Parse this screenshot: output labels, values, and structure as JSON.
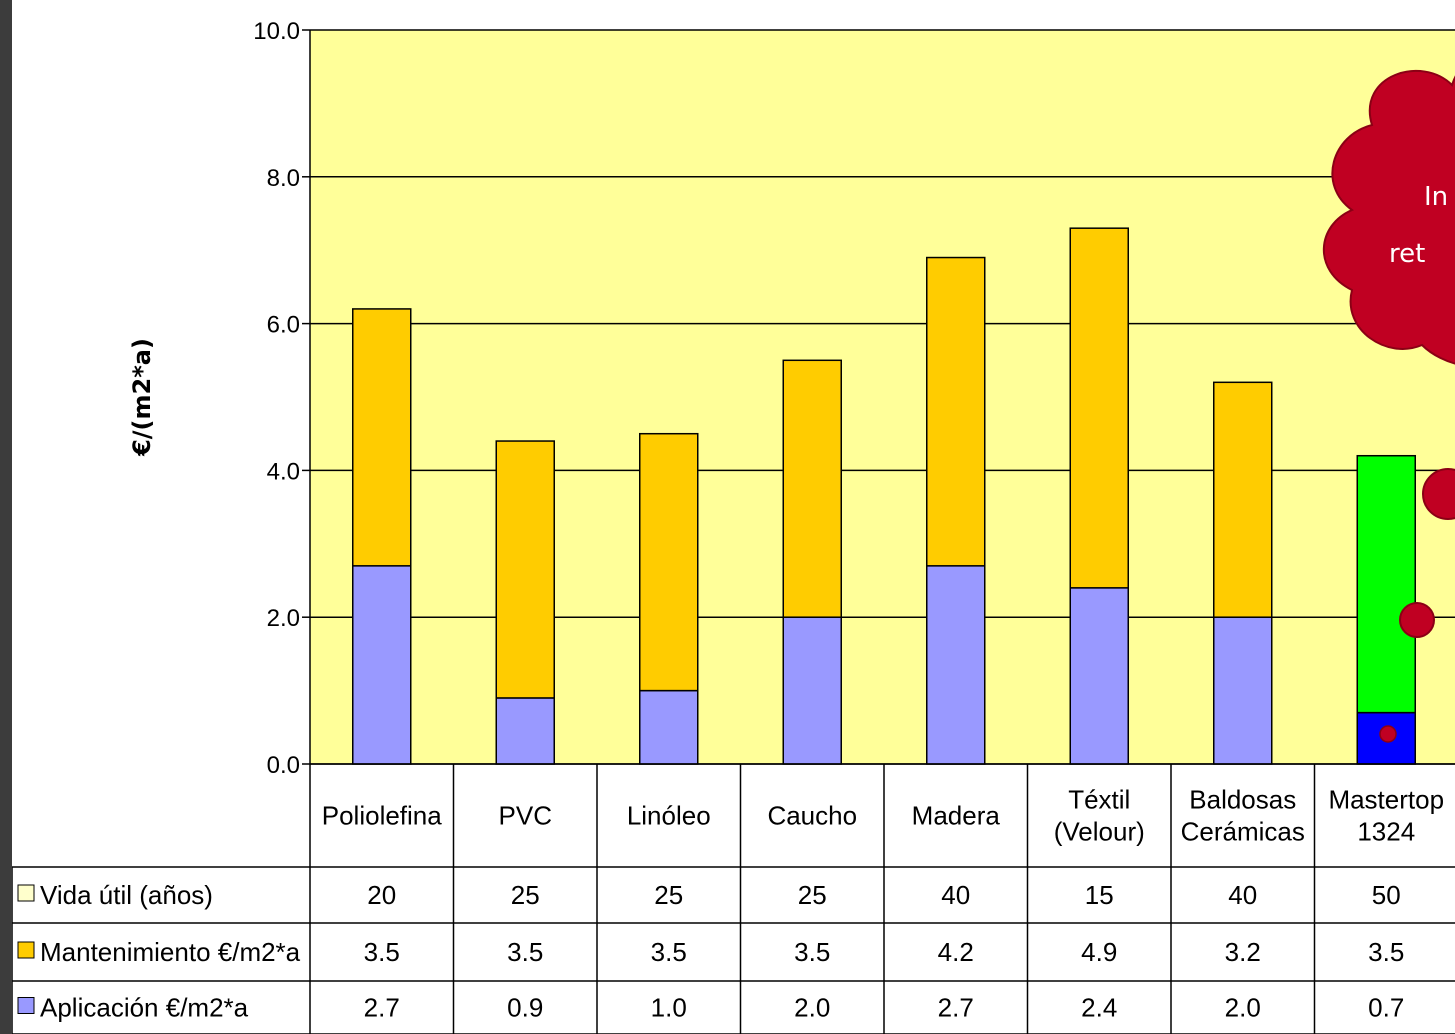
{
  "colors": {
    "plot_bg": "#ffff99",
    "aplicacion": "#9999ff",
    "mantenimiento": "#ffcc00",
    "vida": "#ffffcc",
    "highlight_aplicacion": "#0000ff",
    "highlight_mantenimiento": "#00ff00",
    "callout": "#c00022",
    "callout_dark": "#8b0015"
  },
  "chart_data": {
    "type": "bar",
    "stacked": true,
    "ylabel": "€/(m2*a)",
    "ylim": [
      0,
      10
    ],
    "yticks": [
      "0.0",
      "2.0",
      "4.0",
      "6.0",
      "8.0",
      "10.0"
    ],
    "grid": true,
    "categories": [
      [
        "Poliolefina"
      ],
      [
        "PVC"
      ],
      [
        "Linóleo"
      ],
      [
        "Caucho"
      ],
      [
        "Madera"
      ],
      [
        "Téxtil",
        "(Velour)"
      ],
      [
        "Baldosas",
        "Cerámicas"
      ],
      [
        "Mastertop",
        "1324"
      ]
    ],
    "highlight_category_index": 7,
    "series": [
      {
        "name": "Vida útil (años)",
        "key": "vida",
        "values": [
          "20",
          "25",
          "25",
          "25",
          "40",
          "15",
          "40",
          "50"
        ]
      },
      {
        "name": "Mantenimiento €/m2*a",
        "key": "mantenimiento",
        "values": [
          "3.5",
          "3.5",
          "3.5",
          "3.5",
          "4.2",
          "4.9",
          "3.2",
          "3.5"
        ]
      },
      {
        "name": "Aplicación €/m2*a",
        "key": "aplicacion",
        "values": [
          "2.7",
          "0.9",
          "1.0",
          "2.0",
          "2.7",
          "2.4",
          "2.0",
          "0.7"
        ]
      }
    ],
    "legend_placement": "data-table"
  },
  "callout": {
    "lines": [
      "In",
      "ret"
    ]
  }
}
